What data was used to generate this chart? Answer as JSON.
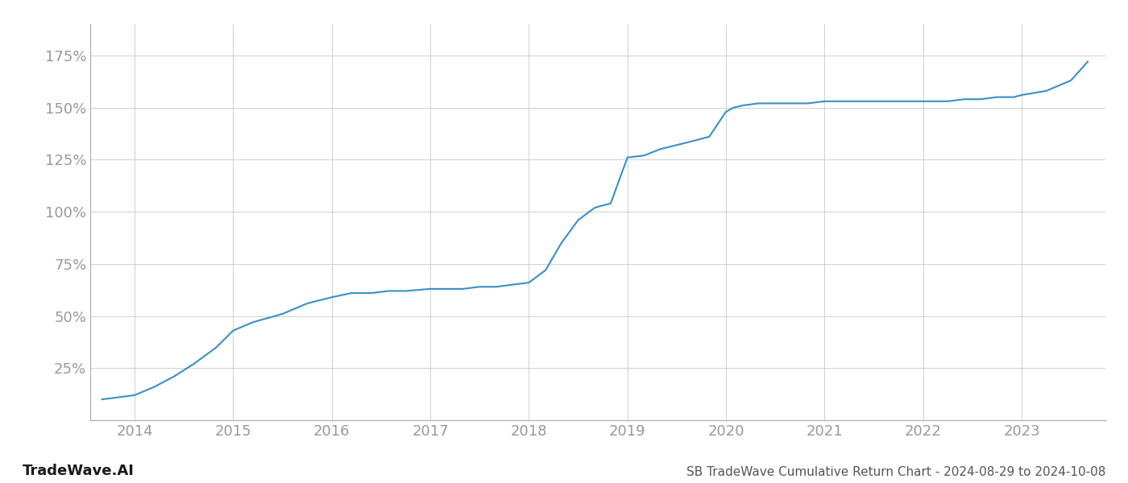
{
  "title": "SB TradeWave Cumulative Return Chart - 2024-08-29 to 2024-10-08",
  "watermark": "TradeWave.AI",
  "line_color": "#3a8fc7",
  "background_color": "#ffffff",
  "grid_color": "#d0d0d0",
  "x_years": [
    2014,
    2015,
    2016,
    2017,
    2018,
    2019,
    2020,
    2021,
    2022,
    2023
  ],
  "x_data": [
    2013.67,
    2014.0,
    2014.2,
    2014.4,
    2014.6,
    2014.83,
    2015.0,
    2015.2,
    2015.5,
    2015.75,
    2016.0,
    2016.2,
    2016.4,
    2016.58,
    2016.75,
    2017.0,
    2017.17,
    2017.33,
    2017.5,
    2017.67,
    2017.83,
    2018.0,
    2018.17,
    2018.33,
    2018.5,
    2018.67,
    2018.83,
    2019.0,
    2019.17,
    2019.33,
    2019.5,
    2019.67,
    2019.83,
    2020.0,
    2020.08,
    2020.17,
    2020.33,
    2020.5,
    2020.67,
    2020.83,
    2021.0,
    2021.25,
    2021.5,
    2021.75,
    2022.0,
    2022.25,
    2022.42,
    2022.58,
    2022.75,
    2022.92,
    2023.0,
    2023.25,
    2023.5,
    2023.67
  ],
  "y_data": [
    10,
    12,
    16,
    21,
    27,
    35,
    43,
    47,
    51,
    56,
    59,
    61,
    61,
    62,
    62,
    63,
    63,
    63,
    64,
    64,
    65,
    66,
    72,
    85,
    96,
    102,
    104,
    126,
    127,
    130,
    132,
    134,
    136,
    148,
    150,
    151,
    152,
    152,
    152,
    152,
    153,
    153,
    153,
    153,
    153,
    153,
    154,
    154,
    155,
    155,
    156,
    158,
    163,
    172
  ],
  "yticks": [
    25,
    50,
    75,
    100,
    125,
    150,
    175
  ],
  "ylim": [
    0,
    190
  ],
  "xlim": [
    2013.55,
    2023.85
  ],
  "title_fontsize": 11,
  "tick_label_color": "#999999",
  "tick_label_fontsize": 13,
  "title_color": "#555555",
  "watermark_color": "#1a1a1a",
  "watermark_fontsize": 13,
  "line_width": 1.5
}
